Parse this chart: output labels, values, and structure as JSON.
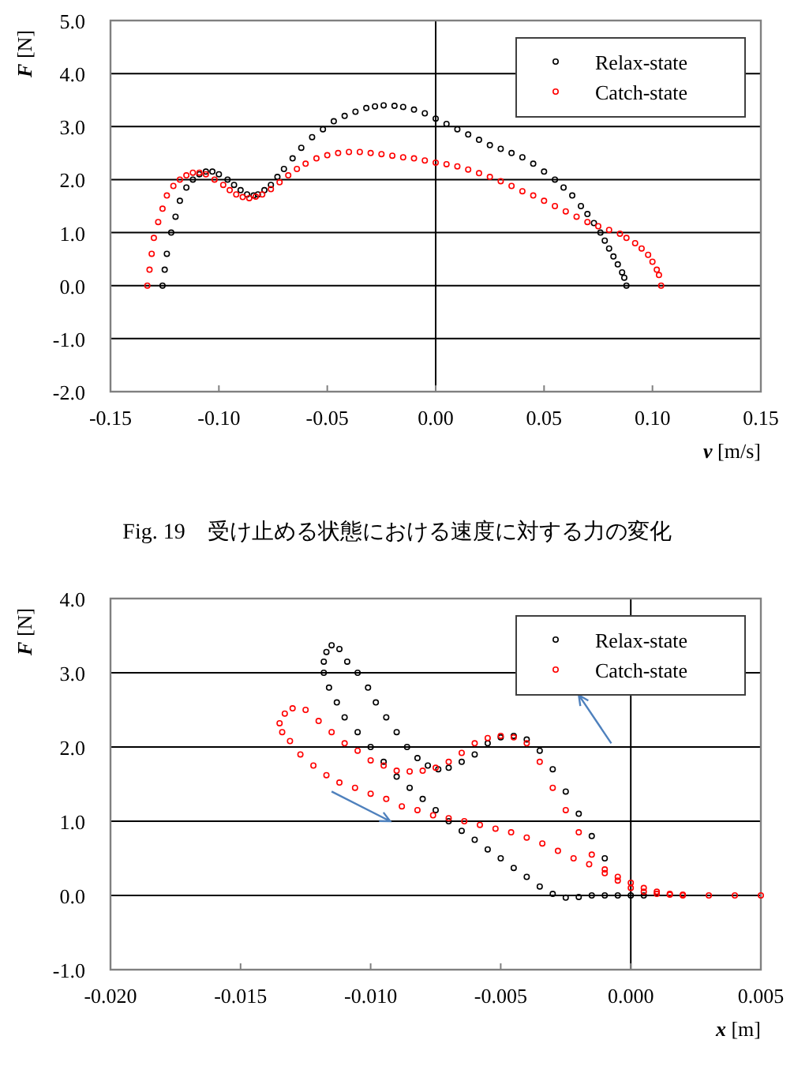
{
  "chart_data": [
    {
      "type": "scatter",
      "xlabel": "v [m/s]",
      "ylabel": "F [N]",
      "xlim": [
        -0.15,
        0.15
      ],
      "ylim": [
        -2,
        5
      ],
      "xticks": [
        {
          "value": -0.15,
          "label": "-0.15"
        },
        {
          "value": -0.1,
          "label": "-0.10"
        },
        {
          "value": -0.05,
          "label": "-0.05"
        },
        {
          "value": 0,
          "label": "0.00"
        },
        {
          "value": 0.05,
          "label": "0.05"
        },
        {
          "value": 0.1,
          "label": "0.10"
        },
        {
          "value": 0.15,
          "label": "0.15"
        }
      ],
      "yticks": [
        {
          "value": -2,
          "label": "-2.0"
        },
        {
          "value": -1,
          "label": "-1.0"
        },
        {
          "value": 0,
          "label": "0.0"
        },
        {
          "value": 1,
          "label": "1.0"
        },
        {
          "value": 2,
          "label": "2.0"
        },
        {
          "value": 3,
          "label": "3.0"
        },
        {
          "value": 4,
          "label": "4.0"
        },
        {
          "value": 5,
          "label": "5.0"
        }
      ],
      "grid": "y",
      "legend": "top right",
      "marker": "circle",
      "ref_lines": [
        {
          "axis": "x",
          "value": 0
        }
      ],
      "annotations": [
        "Fig. 19　受け止める状態における速度に対する力の変化"
      ],
      "series": [
        {
          "name": "Relax-state",
          "color": "#000000",
          "x": [
            -0.126,
            -0.125,
            -0.124,
            -0.122,
            -0.12,
            -0.118,
            -0.115,
            -0.112,
            -0.109,
            -0.106,
            -0.103,
            -0.1,
            -0.096,
            -0.093,
            -0.09,
            -0.087,
            -0.084,
            -0.082,
            -0.079,
            -0.076,
            -0.073,
            -0.07,
            -0.066,
            -0.062,
            -0.057,
            -0.052,
            -0.047,
            -0.042,
            -0.037,
            -0.032,
            -0.028,
            -0.024,
            -0.019,
            -0.015,
            -0.01,
            -0.005,
            0,
            0.005,
            0.01,
            0.015,
            0.02,
            0.025,
            0.03,
            0.035,
            0.04,
            0.045,
            0.05,
            0.055,
            0.059,
            0.063,
            0.067,
            0.07,
            0.073,
            0.076,
            0.078,
            0.08,
            0.082,
            0.084,
            0.086,
            0.087,
            0.088
          ],
          "values": [
            0,
            0.3,
            0.6,
            1.0,
            1.3,
            1.6,
            1.85,
            2.0,
            2.1,
            2.15,
            2.15,
            2.1,
            2.0,
            1.9,
            1.8,
            1.72,
            1.7,
            1.72,
            1.8,
            1.9,
            2.05,
            2.2,
            2.4,
            2.6,
            2.8,
            2.95,
            3.1,
            3.2,
            3.28,
            3.35,
            3.38,
            3.4,
            3.39,
            3.37,
            3.32,
            3.25,
            3.15,
            3.05,
            2.95,
            2.85,
            2.75,
            2.65,
            2.58,
            2.5,
            2.42,
            2.3,
            2.15,
            2.0,
            1.85,
            1.7,
            1.5,
            1.35,
            1.18,
            1.0,
            0.85,
            0.7,
            0.55,
            0.4,
            0.25,
            0.15,
            0
          ]
        },
        {
          "name": "Catch-state",
          "color": "#ff0000",
          "x": [
            -0.133,
            -0.132,
            -0.131,
            -0.13,
            -0.128,
            -0.126,
            -0.124,
            -0.121,
            -0.118,
            -0.115,
            -0.112,
            -0.109,
            -0.106,
            -0.102,
            -0.098,
            -0.095,
            -0.092,
            -0.089,
            -0.086,
            -0.083,
            -0.08,
            -0.076,
            -0.072,
            -0.068,
            -0.064,
            -0.06,
            -0.055,
            -0.05,
            -0.045,
            -0.04,
            -0.035,
            -0.03,
            -0.025,
            -0.02,
            -0.015,
            -0.01,
            -0.005,
            0,
            0.005,
            0.01,
            0.015,
            0.02,
            0.025,
            0.03,
            0.035,
            0.04,
            0.045,
            0.05,
            0.055,
            0.06,
            0.065,
            0.07,
            0.075,
            0.08,
            0.085,
            0.088,
            0.092,
            0.095,
            0.098,
            0.1,
            0.102,
            0.103,
            0.104
          ],
          "values": [
            0,
            0.3,
            0.6,
            0.9,
            1.2,
            1.45,
            1.7,
            1.88,
            2.0,
            2.08,
            2.13,
            2.13,
            2.1,
            2.0,
            1.9,
            1.8,
            1.72,
            1.67,
            1.65,
            1.68,
            1.72,
            1.82,
            1.95,
            2.08,
            2.2,
            2.3,
            2.4,
            2.46,
            2.5,
            2.52,
            2.52,
            2.5,
            2.48,
            2.45,
            2.42,
            2.4,
            2.36,
            2.32,
            2.29,
            2.25,
            2.19,
            2.12,
            2.05,
            1.97,
            1.88,
            1.78,
            1.7,
            1.6,
            1.5,
            1.4,
            1.3,
            1.2,
            1.12,
            1.05,
            0.98,
            0.9,
            0.8,
            0.7,
            0.58,
            0.45,
            0.3,
            0.2,
            0
          ]
        }
      ]
    },
    {
      "type": "scatter",
      "xlabel": "x [m]",
      "ylabel": "F [N]",
      "xlim": [
        -0.02,
        0.005
      ],
      "ylim": [
        -1,
        4
      ],
      "xticks": [
        {
          "value": -0.02,
          "label": "-0.020"
        },
        {
          "value": -0.015,
          "label": "-0.015"
        },
        {
          "value": -0.01,
          "label": "-0.010"
        },
        {
          "value": -0.005,
          "label": "-0.005"
        },
        {
          "value": 0,
          "label": "0.000"
        },
        {
          "value": 0.005,
          "label": "0.005"
        }
      ],
      "yticks": [
        {
          "value": -1,
          "label": "-1.0"
        },
        {
          "value": 0,
          "label": "0.0"
        },
        {
          "value": 1,
          "label": "1.0"
        },
        {
          "value": 2,
          "label": "2.0"
        },
        {
          "value": 3,
          "label": "3.0"
        },
        {
          "value": 4,
          "label": "4.0"
        }
      ],
      "grid": "y",
      "legend": "top right",
      "marker": "circle",
      "ref_lines": [
        {
          "axis": "x",
          "value": 0
        }
      ],
      "series": [
        {
          "name": "Relax-state",
          "color": "#000000",
          "x": [
            0.0005,
            0,
            -0.0005,
            -0.001,
            -0.0015,
            -0.002,
            -0.0025,
            -0.003,
            -0.0035,
            -0.004,
            -0.0045,
            -0.005,
            -0.0055,
            -0.006,
            -0.0065,
            -0.007,
            -0.0075,
            -0.008,
            -0.0085,
            -0.009,
            -0.0095,
            -0.01,
            -0.0105,
            -0.011,
            -0.0113,
            -0.0116,
            -0.0118,
            -0.0118,
            -0.0117,
            -0.0115,
            -0.0112,
            -0.0109,
            -0.0105,
            -0.0101,
            -0.0098,
            -0.0094,
            -0.009,
            -0.0086,
            -0.0082,
            -0.0078,
            -0.0074,
            -0.007,
            -0.0065,
            -0.006,
            -0.0055,
            -0.005,
            -0.0045,
            -0.004,
            -0.0035,
            -0.003,
            -0.0025,
            -0.002,
            -0.0015,
            -0.001
          ],
          "values": [
            0,
            0,
            0,
            0,
            0,
            -0.02,
            -0.03,
            0.02,
            0.12,
            0.25,
            0.37,
            0.5,
            0.62,
            0.75,
            0.87,
            1.0,
            1.15,
            1.3,
            1.45,
            1.6,
            1.8,
            2.0,
            2.2,
            2.4,
            2.6,
            2.8,
            3.0,
            3.15,
            3.28,
            3.37,
            3.32,
            3.15,
            3.0,
            2.8,
            2.6,
            2.4,
            2.2,
            2.0,
            1.85,
            1.75,
            1.7,
            1.72,
            1.8,
            1.9,
            2.05,
            2.13,
            2.15,
            2.1,
            1.95,
            1.7,
            1.4,
            1.1,
            0.8,
            0.5
          ]
        },
        {
          "name": "Catch-state",
          "color": "#ff0000",
          "x": [
            0.005,
            0.004,
            0.003,
            0.002,
            0.0015,
            0.001,
            0.0005,
            0,
            -0.0005,
            -0.001,
            -0.0015,
            -0.002,
            -0.0025,
            -0.003,
            -0.0035,
            -0.004,
            -0.0045,
            -0.005,
            -0.0055,
            -0.006,
            -0.0065,
            -0.007,
            -0.0075,
            -0.008,
            -0.0085,
            -0.009,
            -0.0095,
            -0.01,
            -0.0105,
            -0.011,
            -0.0115,
            -0.012,
            -0.0125,
            -0.013,
            -0.0133,
            -0.0135,
            -0.0134,
            -0.0131,
            -0.0127,
            -0.0122,
            -0.0117,
            -0.0112,
            -0.0106,
            -0.01,
            -0.0094,
            -0.0088,
            -0.0082,
            -0.0076,
            -0.007,
            -0.0064,
            -0.0058,
            -0.0052,
            -0.0046,
            -0.004,
            -0.0034,
            -0.0028,
            -0.0022,
            -0.0016,
            -0.001,
            -0.0005,
            0,
            0.0005,
            0.001,
            0.0015,
            0.002
          ],
          "values": [
            0,
            0,
            0,
            0,
            0.01,
            0.02,
            0.05,
            0.1,
            0.2,
            0.3,
            0.55,
            0.85,
            1.15,
            1.45,
            1.8,
            2.05,
            2.13,
            2.15,
            2.12,
            2.05,
            1.92,
            1.8,
            1.72,
            1.68,
            1.67,
            1.68,
            1.75,
            1.82,
            1.95,
            2.05,
            2.2,
            2.35,
            2.5,
            2.52,
            2.45,
            2.32,
            2.2,
            2.08,
            1.9,
            1.75,
            1.62,
            1.52,
            1.45,
            1.37,
            1.3,
            1.2,
            1.15,
            1.08,
            1.04,
            1.0,
            0.95,
            0.9,
            0.85,
            0.78,
            0.7,
            0.6,
            0.5,
            0.42,
            0.35,
            0.25,
            0.17,
            0.1,
            0.05,
            0.02,
            0.01
          ]
        }
      ]
    }
  ]
}
